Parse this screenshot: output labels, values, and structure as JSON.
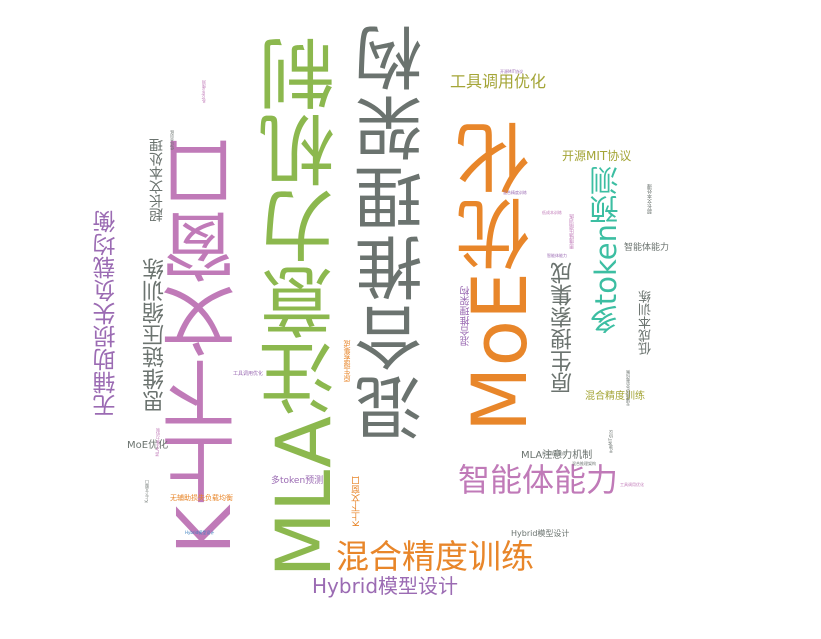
{
  "colors": {
    "gray": "#6b736f",
    "orange": "#e8862a",
    "green": "#8cb84e",
    "pink": "#c07ab8",
    "olive": "#a4a537",
    "teal": "#3cbea2",
    "purple": "#9b6bb3",
    "blue": "#3d7fbf"
  },
  "words": [
    {
      "text": "混合推理架构"
    },
    {
      "text": "MLA注意力机制"
    },
    {
      "text": "K上下文窗口"
    },
    {
      "text": "MoE优化"
    },
    {
      "text": "智能体能力"
    },
    {
      "text": "多token预测"
    },
    {
      "text": "混合精度训练"
    },
    {
      "text": "Hybrid模型设计"
    },
    {
      "text": "原生搜索集成"
    },
    {
      "text": "无辅助损失负载均衡"
    },
    {
      "text": "思维链压缩训练"
    },
    {
      "text": "超长文本处理"
    },
    {
      "text": "工具调用优化"
    },
    {
      "text": "开源MIT协议"
    },
    {
      "text": "低成本训练"
    },
    {
      "text": "智能体能力"
    },
    {
      "text": "混合推理架构"
    },
    {
      "text": "混合精度训练"
    },
    {
      "text": "MLA注意力机制"
    },
    {
      "text": "MoE优化"
    },
    {
      "text": "多token预测"
    },
    {
      "text": "无辅助损失负载均衡"
    },
    {
      "text": "K上下文窗口"
    },
    {
      "text": "原生搜索集成"
    },
    {
      "text": "工具调用优化"
    },
    {
      "text": "Hybrid模型设计"
    },
    {
      "text": "思维链压缩训练"
    },
    {
      "text": "超长文本处理"
    },
    {
      "text": "低成本训练"
    },
    {
      "text": "开源MIT协议"
    },
    {
      "text": "智能体能力"
    },
    {
      "text": "多token预测"
    },
    {
      "text": "MLA注意力机制"
    },
    {
      "text": "混合推理架构"
    },
    {
      "text": "K上下文窗口"
    },
    {
      "text": "工具调用优化"
    },
    {
      "text": "原生搜索集成"
    },
    {
      "text": "低成本训练"
    },
    {
      "text": "无辅助损失负载均衡"
    },
    {
      "text": "Hybrid模型设计"
    },
    {
      "text": "混合精度训练"
    },
    {
      "text": "开源MIT协议"
    }
  ]
}
